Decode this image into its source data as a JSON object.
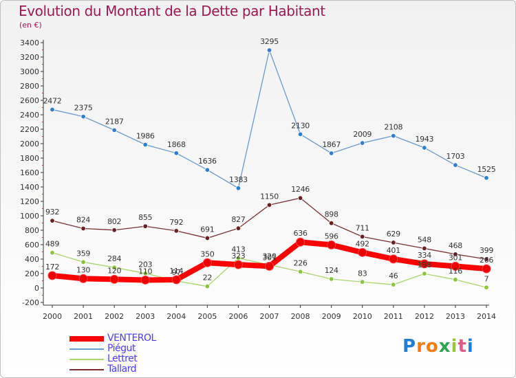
{
  "header": {
    "title": "Evolution du Montant de la Dette par Habitant",
    "subtitle": "(en €)"
  },
  "brand": {
    "text": "Proxiti",
    "colors": [
      "#1f7fd6",
      "#f07d10",
      "#f07d10",
      "#2ea44f",
      "#9ac43a",
      "#e05a8b",
      "#1f7fd6"
    ]
  },
  "colors": {
    "title": "#9e1852",
    "axis": "#333333",
    "grid": "#cccccc",
    "legend_text": "#4a3cff"
  },
  "chart_data": {
    "type": "line",
    "title": "Evolution du Montant de la Dette par Habitant",
    "subtitle": "(en €)",
    "ylim": [
      -200,
      3400
    ],
    "yticks": [
      -200,
      0,
      200,
      400,
      600,
      800,
      1000,
      1200,
      1400,
      1600,
      1800,
      2000,
      2200,
      2400,
      2600,
      2800,
      3000,
      3200,
      3400
    ],
    "grid": false,
    "legend_position": "bottom-left",
    "x": [
      "2000",
      "2001",
      "2002",
      "2003",
      "2004",
      "2005",
      "2006",
      "2007",
      "2008",
      "2009",
      "2010",
      "2011",
      "2012",
      "2013",
      "2014"
    ],
    "series": [
      {
        "name": "Piégut",
        "color": "#6699cc",
        "marker": "#2e7fce",
        "values": [
          2472,
          2375,
          2187,
          1986,
          1868,
          1636,
          1383,
          3295,
          2130,
          1867,
          2009,
          2108,
          1943,
          1703,
          1525
        ]
      },
      {
        "name": "Tallard",
        "color": "#7a2f2f",
        "marker": "#6b1f1f",
        "values": [
          932,
          824,
          802,
          855,
          792,
          691,
          827,
          1150,
          1246,
          898,
          711,
          629,
          548,
          468,
          399
        ]
      },
      {
        "name": "Lettret",
        "color": "#a8d66a",
        "marker": "#8cc63f",
        "values": [
          489,
          359,
          284,
          203,
          97,
          22,
          413,
          320,
          226,
          124,
          83,
          46,
          198,
          116,
          7
        ]
      },
      {
        "name": "VENTEROL",
        "color": "#ff0000",
        "marker": "#ee0000",
        "values": [
          172,
          130,
          120,
          110,
          114,
          350,
          323,
          301,
          636,
          596,
          492,
          401,
          334,
          301,
          266
        ]
      }
    ],
    "legend_order": [
      "VENTEROL",
      "Piégut",
      "Lettret",
      "Tallard"
    ]
  }
}
